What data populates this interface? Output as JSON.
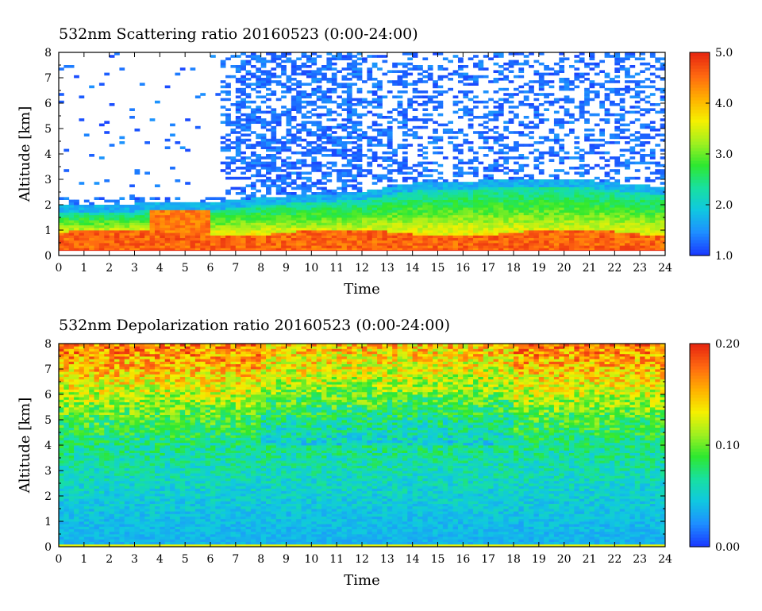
{
  "chart_data": [
    {
      "type": "heatmap",
      "title": "532nm Scattering ratio  20160523 (0:00-24:00)",
      "xlabel": "Time",
      "ylabel": "Altitude [km]",
      "x_ticks": [
        "0",
        "1",
        "2",
        "3",
        "4",
        "5",
        "6",
        "7",
        "8",
        "9",
        "10",
        "11",
        "12",
        "13",
        "14",
        "15",
        "16",
        "17",
        "18",
        "19",
        "20",
        "21",
        "22",
        "23",
        "24"
      ],
      "y_ticks": [
        "0",
        "1",
        "2",
        "3",
        "4",
        "5",
        "6",
        "7",
        "8"
      ],
      "xlim": [
        0,
        24
      ],
      "ylim": [
        0,
        8
      ],
      "colorbar": {
        "range": [
          1.0,
          5.0
        ],
        "tick_labels": [
          "1.0",
          "2.0",
          "3.0",
          "4.0",
          "5.0"
        ],
        "tick_values": [
          1.0,
          2.0,
          3.0,
          4.0,
          5.0
        ]
      },
      "colormap": [
        "#1a3cff",
        "#1e90ff",
        "#10c8e0",
        "#18e0a0",
        "#2ee830",
        "#a0f020",
        "#f5f000",
        "#ffb000",
        "#ff6a10",
        "#e82a10"
      ],
      "features": {
        "boundary_layer_top_km": [
          [
            0,
            2.0
          ],
          [
            6,
            2.1
          ],
          [
            8,
            2.3
          ],
          [
            12,
            2.5
          ],
          [
            14,
            2.85
          ],
          [
            18,
            3.0
          ],
          [
            20,
            3.05
          ],
          [
            24,
            2.7
          ]
        ],
        "orange_layer_km": [
          0.3,
          0.9
        ],
        "ground_line_km": 0.2,
        "clear_sky_region": {
          "time": [
            0,
            6.5
          ],
          "altitude_km": [
            2.3,
            8
          ]
        }
      }
    },
    {
      "type": "heatmap",
      "title": "532nm Depolarization ratio  20160523 (0:00-24:00)",
      "xlabel": "Time",
      "ylabel": "Altitude [km]",
      "x_ticks": [
        "0",
        "1",
        "2",
        "3",
        "4",
        "5",
        "6",
        "7",
        "8",
        "9",
        "10",
        "11",
        "12",
        "13",
        "14",
        "15",
        "16",
        "17",
        "18",
        "19",
        "20",
        "21",
        "22",
        "23",
        "24"
      ],
      "y_ticks": [
        "0",
        "1",
        "2",
        "3",
        "4",
        "5",
        "6",
        "7",
        "8"
      ],
      "xlim": [
        0,
        24
      ],
      "ylim": [
        0,
        8
      ],
      "colorbar": {
        "range": [
          0.0,
          0.2
        ],
        "tick_labels": [
          "0.00",
          "0.10",
          "0.20"
        ],
        "tick_values": [
          0.0,
          0.1,
          0.2
        ]
      },
      "colormap": [
        "#1a3cff",
        "#1e90ff",
        "#10c8e0",
        "#18e0a0",
        "#2ee830",
        "#a0f020",
        "#f5f000",
        "#ffb000",
        "#ff6a10",
        "#e82a10"
      ],
      "features": {
        "profile": [
          [
            0.0,
            0.035
          ],
          [
            1.0,
            0.04
          ],
          [
            2.0,
            0.05
          ],
          [
            3.0,
            0.06
          ],
          [
            4.0,
            0.07
          ],
          [
            5.0,
            0.09
          ],
          [
            6.0,
            0.12
          ],
          [
            7.0,
            0.15
          ],
          [
            8.0,
            0.17
          ]
        ],
        "surface_layer_km": [
          0.0,
          0.15
        ],
        "surface_layer_value": 0.13
      }
    }
  ]
}
